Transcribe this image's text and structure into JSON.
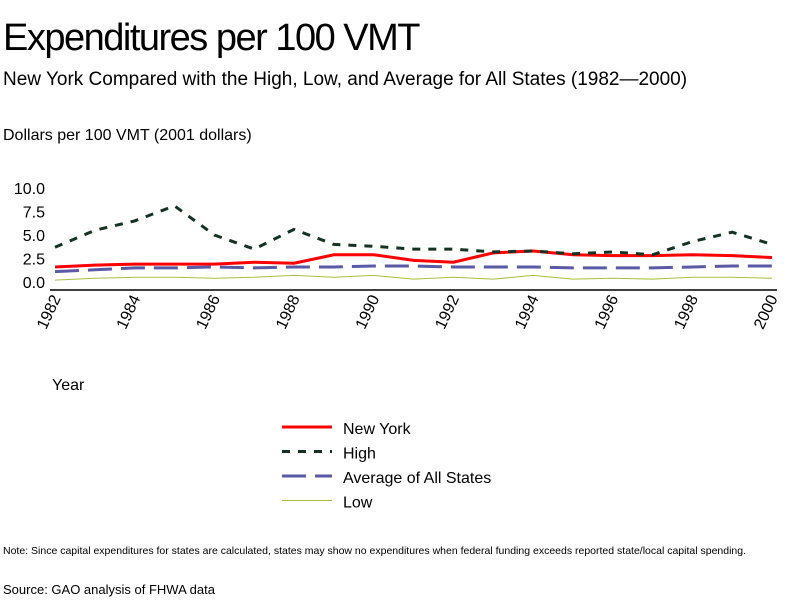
{
  "chart_data": {
    "type": "line",
    "title": "Expenditures per 100 VMT",
    "subtitle": "New York Compared with the High, Low, and Average for All States (1982—2000)",
    "ylabel": "Dollars per 100 VMT (2001 dollars)",
    "xlabel": "Year",
    "ylim": [
      0,
      10
    ],
    "yticks": [
      "0.0",
      "2.5",
      "5.0",
      "7.5",
      "10.0"
    ],
    "ytick_values": [
      0,
      2.5,
      5,
      7.5,
      10
    ],
    "x": [
      1982,
      1983,
      1984,
      1985,
      1986,
      1987,
      1988,
      1989,
      1990,
      1991,
      1992,
      1993,
      1994,
      1995,
      1996,
      1997,
      1998,
      1999,
      2000
    ],
    "xticks": [
      "1982",
      "1984",
      "1986",
      "1988",
      "1990",
      "1992",
      "1994",
      "1996",
      "1998",
      "2000"
    ],
    "legend_position": "bottom-center",
    "series": [
      {
        "name": "New York",
        "color": "#ff0000",
        "dash": "",
        "width": 3,
        "values": [
          1.6,
          1.8,
          1.9,
          1.9,
          1.9,
          2.1,
          2.0,
          2.9,
          2.9,
          2.3,
          2.1,
          3.1,
          3.3,
          2.9,
          2.8,
          2.8,
          2.9,
          2.8,
          2.6
        ]
      },
      {
        "name": "High",
        "color": "#153323",
        "dash": "8,8",
        "width": 3,
        "values": [
          3.7,
          5.5,
          6.5,
          8.1,
          5.0,
          3.5,
          5.6,
          4.0,
          3.8,
          3.5,
          3.5,
          3.2,
          3.3,
          3.0,
          3.2,
          2.9,
          4.3,
          5.3,
          4.0
        ]
      },
      {
        "name": "Average of All States",
        "color": "#5a5aa6",
        "dash": "24,9",
        "width": 3,
        "values": [
          1.1,
          1.3,
          1.5,
          1.5,
          1.6,
          1.5,
          1.6,
          1.6,
          1.7,
          1.7,
          1.6,
          1.6,
          1.6,
          1.5,
          1.5,
          1.5,
          1.6,
          1.7,
          1.7
        ]
      },
      {
        "name": "Low",
        "color": "#a8c040",
        "dash": "",
        "width": 1,
        "values": [
          0.2,
          0.4,
          0.5,
          0.5,
          0.4,
          0.5,
          0.7,
          0.5,
          0.7,
          0.3,
          0.5,
          0.3,
          0.7,
          0.3,
          0.4,
          0.3,
          0.5,
          0.5,
          0.4
        ]
      }
    ]
  },
  "note": "Note: Since capital expenditures for states are calculated, states may show no expenditures when federal funding exceeds reported state/local capital spending.",
  "source": "Source: GAO analysis of FHWA data"
}
